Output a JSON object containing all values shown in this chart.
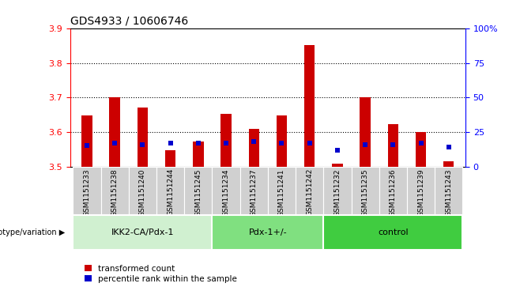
{
  "title": "GDS4933 / 10606746",
  "samples": [
    "GSM1151233",
    "GSM1151238",
    "GSM1151240",
    "GSM1151244",
    "GSM1151245",
    "GSM1151234",
    "GSM1151237",
    "GSM1151241",
    "GSM1151242",
    "GSM1151232",
    "GSM1151235",
    "GSM1151236",
    "GSM1151239",
    "GSM1151243"
  ],
  "red_values": [
    3.648,
    3.702,
    3.67,
    3.548,
    3.572,
    3.652,
    3.61,
    3.648,
    3.852,
    3.508,
    3.7,
    3.622,
    3.6,
    3.516
  ],
  "blue_values": [
    15,
    17,
    16,
    17,
    17,
    17,
    18,
    17,
    17,
    12,
    16,
    16,
    17,
    14
  ],
  "ylim_left": [
    3.5,
    3.9
  ],
  "ylim_right": [
    0,
    100
  ],
  "yticks_left": [
    3.5,
    3.6,
    3.7,
    3.8,
    3.9
  ],
  "yticks_right": [
    0,
    25,
    50,
    75,
    100
  ],
  "groups": [
    {
      "label": "IKK2-CA/Pdx-1",
      "start": 0,
      "end": 5,
      "color": "#d0f0d0"
    },
    {
      "label": "Pdx-1+/-",
      "start": 5,
      "end": 9,
      "color": "#80e080"
    },
    {
      "label": "control",
      "start": 9,
      "end": 14,
      "color": "#40cc40"
    }
  ],
  "group_label": "genotype/variation",
  "legend_red": "transformed count",
  "legend_blue": "percentile rank within the sample",
  "bar_color_red": "#cc0000",
  "bar_color_blue": "#0000cc",
  "bg_color": "#ffffff",
  "xtick_bg_color": "#d0d0d0",
  "dotted_lines": [
    3.6,
    3.7,
    3.8
  ],
  "bar_width": 0.38
}
